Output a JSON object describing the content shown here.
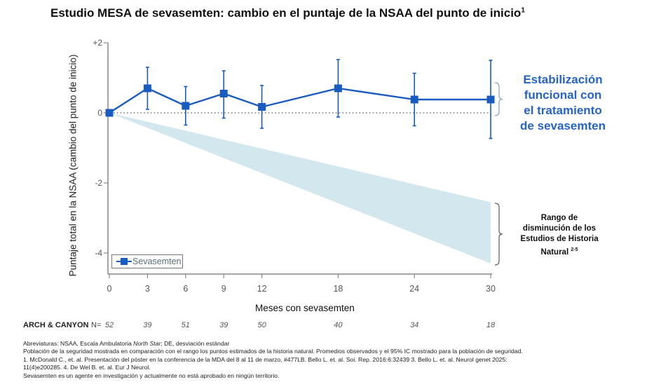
{
  "chart_data": {
    "type": "line",
    "title": "Estudio MESA de sevasemten: cambio en el puntaje de la NSAA del punto de inicio",
    "title_superscript": "1",
    "xlabel": "Meses con sevasemten",
    "ylabel": "Puntaje total en la NSAA (cambio del punto de inicio)",
    "x": [
      0,
      3,
      6,
      9,
      12,
      18,
      24,
      30
    ],
    "x_tick_labels": [
      "0",
      "3",
      "6",
      "9",
      "12",
      "18",
      "24",
      "30"
    ],
    "y_ticks": [
      2,
      0,
      -2,
      -4
    ],
    "y_tick_labels": [
      "+2",
      "0",
      "-2",
      "-4"
    ],
    "xlim": [
      0,
      30
    ],
    "ylim": [
      -4.6,
      2
    ],
    "grid": false,
    "reference_line": {
      "y": 0,
      "style": "dotted"
    },
    "series": [
      {
        "name": "Sevasemten",
        "color": "#1a5bbf",
        "marker": "square",
        "values": [
          0,
          0.7,
          0.2,
          0.55,
          0.17,
          0.7,
          0.38,
          0.38
        ],
        "ci_upper": [
          null,
          1.3,
          0.75,
          1.2,
          0.78,
          1.52,
          1.13,
          1.5
        ],
        "ci_lower": [
          null,
          0.1,
          -0.35,
          -0.15,
          -0.44,
          -0.12,
          -0.37,
          -0.73
        ]
      }
    ],
    "shaded_region": {
      "name": "Rango de disminución de los Estudios de Historia Natural",
      "color": "#d3e8ee",
      "start": {
        "x": 0,
        "y": 0
      },
      "end": {
        "x": 30,
        "upper": -2.55,
        "lower": -4.3
      }
    },
    "legend": {
      "entries": [
        "Sevasemten"
      ],
      "placement": "bottom-left"
    },
    "annotations": {
      "stabilization": [
        "Estabilización",
        "funcional con",
        "el tratamiento",
        "de sevasemten"
      ],
      "natural_history": [
        "Rango de",
        "disminución de los",
        "Estudios de Historia",
        "Natural"
      ],
      "natural_history_superscript": "2-5"
    },
    "n_at_risk": {
      "label": "ARCH & CANYON",
      "prefix": "N=",
      "values": [
        "52",
        "39",
        "51",
        "39",
        "50",
        "40",
        "34",
        "18"
      ]
    }
  },
  "colors": {
    "series": "#1a5bbf",
    "annotation_blue": "#2563c9",
    "wedge": "#d3e8ee",
    "axis": "#888888"
  },
  "footer": {
    "line1_a": "Abreviaturas: NSAA, Escala Ambulatoria ",
    "line1_italic": "North Star",
    "line1_b": "; DE, desviación estándar",
    "line2": "Población de la seguridad mostrada en comparación con el rango los puntos estimados de la historia natural. Promedios observados y el 95% IC mostrado para la población de seguridad.",
    "line3": "1. McDonald C., et. al. Presentación del póster en la conferencia de la MDA del 8 al 11 de marzo, #477LB. Bello L. et. al. Soi. Rep. 2016:6:32439 3. Bello L. et. al. Neurol genet 2025:",
    "line4": "11(4)e200285. 4. De Wel B. et. al. Eur J Neurol.",
    "line5": "Sevasemten es un agente en investigación y actualmente no está aprobado en ningún territorio."
  }
}
